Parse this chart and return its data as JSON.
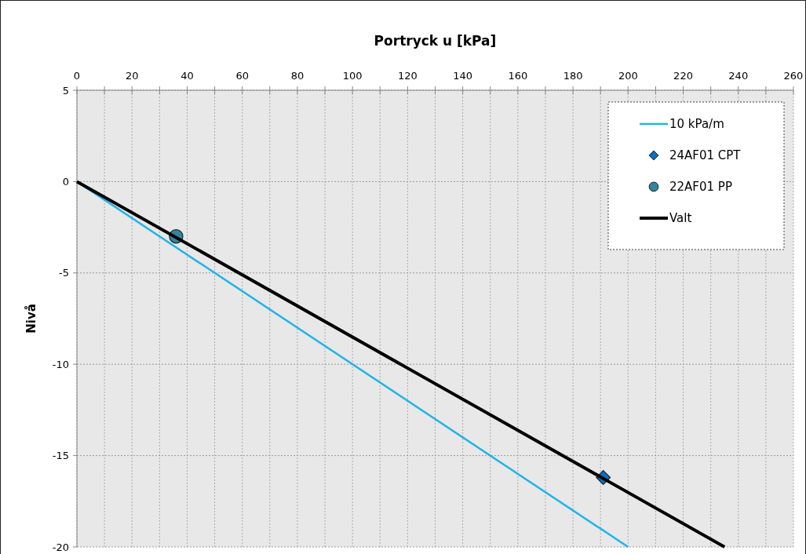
{
  "chart_data": {
    "type": "line",
    "xlabel": "Portryck u [kPa]",
    "ylabel": "Nivå",
    "xlim": [
      0,
      260
    ],
    "ylim": [
      -20,
      5
    ],
    "xticks": [
      0,
      {
        "value": 10,
        "label": null
      },
      20,
      {
        "value": 30,
        "label": null
      },
      40,
      {
        "value": 50,
        "label": null
      },
      60,
      {
        "value": 70,
        "label": null
      },
      80,
      {
        "value": 90,
        "label": null
      },
      100,
      {
        "value": 110,
        "label": null
      },
      120,
      {
        "value": 130,
        "label": null
      },
      140,
      {
        "value": 150,
        "label": null
      },
      160,
      {
        "value": 170,
        "label": null
      },
      180,
      {
        "value": 190,
        "label": null
      },
      200,
      {
        "value": 210,
        "label": null
      },
      220,
      {
        "value": 230,
        "label": null
      },
      240,
      {
        "value": 250,
        "label": null
      },
      260
    ],
    "yticks": [
      -20,
      -15,
      -10,
      -5,
      0,
      5
    ],
    "grid": true,
    "legend": "top right",
    "series": [
      {
        "name": "10 kPa/m",
        "color": "#1fb4ea",
        "x": [
          0,
          200
        ],
        "values": [
          0,
          -20
        ],
        "marker": "none",
        "line_style": "solid"
      },
      {
        "name": "24AF01 CPT",
        "type": "scatter",
        "color": "#0a70c0",
        "x": [
          191
        ],
        "values": [
          -16.2
        ],
        "marker": "diamond"
      },
      {
        "name": "22AF01 PP",
        "type": "scatter",
        "color": "#31859c",
        "x": [
          36
        ],
        "values": [
          -3
        ],
        "marker": "circle"
      },
      {
        "name": "Valt",
        "color": "#000000",
        "x": [
          0,
          235
        ],
        "values": [
          0,
          -20
        ],
        "marker": "none",
        "line_style": "solid"
      }
    ]
  }
}
